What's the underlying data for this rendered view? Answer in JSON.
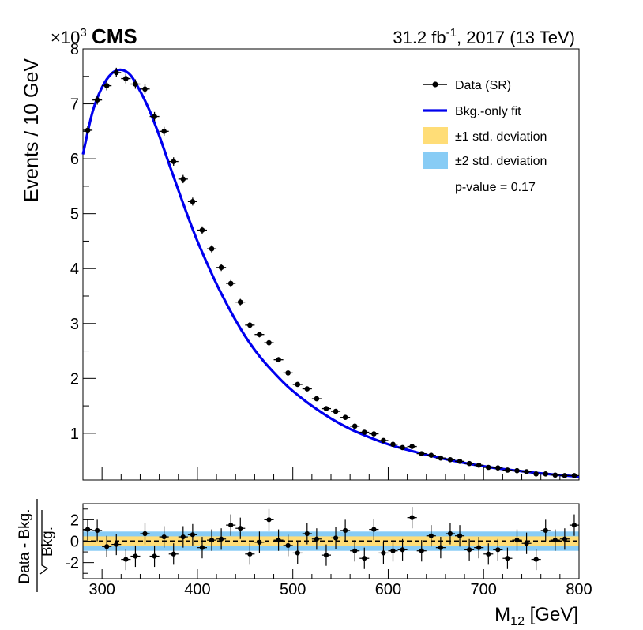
{
  "header": {
    "multiplier_prefix": "×10",
    "multiplier_exp": "3",
    "experiment": "CMS",
    "lumi_value": "31.2 fb",
    "lumi_exp": "-1",
    "lumi_rest": ", 2017 (13 TeV)"
  },
  "legend": {
    "data": "Data (SR)",
    "fit": "Bkg.-only fit",
    "band1": "±1 std. deviation",
    "band2": "±2 std. deviation",
    "pvalue": "p-value = 0.17"
  },
  "colors": {
    "fit": "#0000ee",
    "band1": "#ffdd77",
    "band2": "#88ccf5",
    "points": "#000000"
  },
  "chart_data": [
    {
      "type": "scatter",
      "panel": "main",
      "ylabel": "Events / 10 GeV",
      "xlim": [
        280,
        800
      ],
      "ylim": [
        0.15,
        8.0
      ],
      "y_multiplier": 1000,
      "yticks": [
        1,
        2,
        3,
        4,
        5,
        6,
        7,
        8
      ],
      "bin_width": 10,
      "series": [
        {
          "name": "Data (SR)",
          "x": [
            285,
            295,
            305,
            315,
            325,
            335,
            345,
            355,
            365,
            375,
            385,
            395,
            405,
            415,
            425,
            435,
            445,
            455,
            465,
            475,
            485,
            495,
            505,
            515,
            525,
            535,
            545,
            555,
            565,
            575,
            585,
            595,
            605,
            615,
            625,
            635,
            645,
            655,
            665,
            675,
            685,
            695,
            705,
            715,
            725,
            735,
            745,
            755,
            765,
            775,
            785,
            795
          ],
          "y": [
            6.52,
            7.07,
            7.33,
            7.57,
            7.46,
            7.36,
            7.27,
            6.77,
            6.5,
            5.95,
            5.63,
            5.22,
            4.7,
            4.36,
            4.02,
            3.73,
            3.39,
            2.97,
            2.8,
            2.65,
            2.34,
            2.1,
            1.89,
            1.81,
            1.63,
            1.45,
            1.4,
            1.29,
            1.13,
            1.02,
            0.99,
            0.87,
            0.8,
            0.74,
            0.76,
            0.63,
            0.6,
            0.55,
            0.52,
            0.49,
            0.45,
            0.42,
            0.38,
            0.37,
            0.33,
            0.32,
            0.3,
            0.26,
            0.26,
            0.24,
            0.23,
            0.23
          ]
        },
        {
          "name": "Bkg.-only fit",
          "type": "line",
          "x": [
            280,
            290,
            300,
            310,
            320,
            330,
            340,
            350,
            360,
            370,
            380,
            390,
            400,
            410,
            420,
            430,
            440,
            450,
            460,
            470,
            480,
            490,
            500,
            520,
            540,
            560,
            580,
            600,
            620,
            640,
            660,
            680,
            700,
            720,
            740,
            760,
            780,
            800
          ],
          "y": [
            6.08,
            6.85,
            7.3,
            7.55,
            7.62,
            7.52,
            7.23,
            6.87,
            6.42,
            5.92,
            5.43,
            4.95,
            4.5,
            4.1,
            3.72,
            3.38,
            3.06,
            2.77,
            2.52,
            2.3,
            2.11,
            1.93,
            1.77,
            1.5,
            1.27,
            1.08,
            0.93,
            0.8,
            0.7,
            0.61,
            0.53,
            0.46,
            0.4,
            0.35,
            0.31,
            0.27,
            0.24,
            0.21
          ]
        }
      ]
    },
    {
      "type": "scatter",
      "panel": "ratio",
      "xlabel": "M",
      "xlabel_sub": "12",
      "xlabel_unit": " [GeV]",
      "ylabel_num": "Data - Bkg.",
      "ylabel_den": "Bkg.",
      "xlim": [
        280,
        800
      ],
      "ylim": [
        -3.5,
        3.5
      ],
      "xticks": [
        300,
        400,
        500,
        600,
        700,
        800
      ],
      "yticks": [
        -2,
        0,
        2
      ],
      "band1_halfwidth": 0.45,
      "band2_halfwidth": 0.9,
      "series": [
        {
          "name": "Data (SR)",
          "x": [
            285,
            295,
            305,
            315,
            325,
            335,
            345,
            355,
            365,
            375,
            385,
            395,
            405,
            415,
            425,
            435,
            445,
            455,
            465,
            475,
            485,
            495,
            505,
            515,
            525,
            535,
            545,
            555,
            565,
            575,
            585,
            595,
            605,
            615,
            625,
            635,
            645,
            655,
            665,
            675,
            685,
            695,
            705,
            715,
            725,
            735,
            745,
            755,
            765,
            775,
            785,
            795
          ],
          "y": [
            1.1,
            1.0,
            -0.5,
            -0.3,
            -1.7,
            -1.4,
            0.7,
            -1.4,
            0.4,
            -1.2,
            0.4,
            0.6,
            -0.6,
            0.1,
            0.2,
            1.5,
            1.2,
            -1.2,
            -0.1,
            2.0,
            0.1,
            -0.4,
            -1.1,
            0.7,
            0.2,
            -1.3,
            0.3,
            1.0,
            -0.9,
            -1.6,
            1.1,
            -1.1,
            -0.9,
            -0.8,
            2.2,
            -0.9,
            0.5,
            -0.6,
            0.7,
            0.5,
            -0.8,
            -0.6,
            -1.2,
            -0.8,
            -1.6,
            0.1,
            -0.2,
            -1.7,
            1.0,
            0.1,
            0.2,
            1.5
          ]
        }
      ]
    }
  ]
}
